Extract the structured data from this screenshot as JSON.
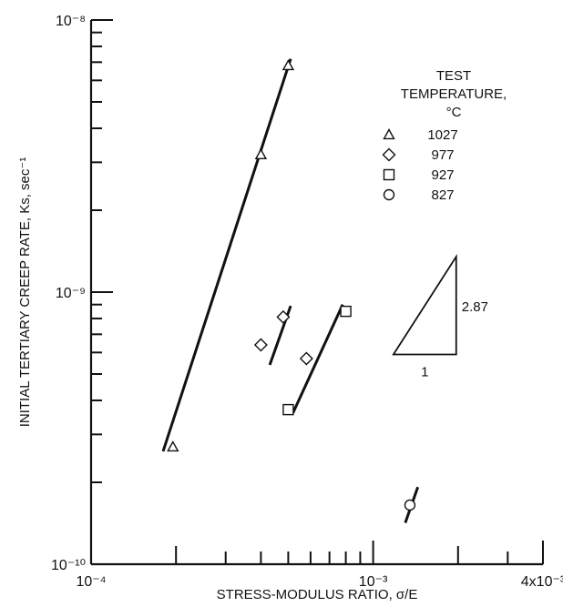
{
  "chart_data": {
    "type": "scatter",
    "title": "",
    "xlabel": "STRESS-MODULUS RATIO, σ/E",
    "ylabel": "INITIAL TERTIARY CREEP RATE, Ks, sec⁻¹",
    "x_scale": "log",
    "y_scale": "log",
    "xlim": [
      0.0001,
      0.004
    ],
    "ylim": [
      1e-10,
      1e-08
    ],
    "x_tick_labels": [
      {
        "value": 0.0001,
        "label": "10⁻⁴"
      },
      {
        "value": 0.001,
        "label": "10⁻³"
      },
      {
        "value": 0.004,
        "label": "4x10⁻³"
      }
    ],
    "y_tick_labels": [
      {
        "value": 1e-10,
        "label": "10⁻¹⁰"
      },
      {
        "value": 1e-09,
        "label": "10⁻⁹"
      },
      {
        "value": 1e-08,
        "label": "10⁻⁸"
      }
    ],
    "grid": false,
    "legend": {
      "title_lines": [
        "TEST",
        "TEMPERATURE,",
        "°C"
      ],
      "placement": "top-right",
      "entries": [
        "1027",
        "977",
        "927",
        "827"
      ]
    },
    "series": [
      {
        "name": "1027",
        "marker": "triangle",
        "points": [
          {
            "x": 0.000195,
            "y": 2.7e-10
          },
          {
            "x": 0.0004,
            "y": 3.2e-09
          },
          {
            "x": 0.0005,
            "y": 6.8e-09
          }
        ],
        "fit": {
          "x": [
            0.00018,
            0.00051
          ],
          "y": [
            2.6e-10,
            7.2e-09
          ]
        }
      },
      {
        "name": "977",
        "marker": "diamond",
        "points": [
          {
            "x": 0.0004,
            "y": 6.4e-10
          },
          {
            "x": 0.00048,
            "y": 8.1e-10
          },
          {
            "x": 0.00058,
            "y": 5.7e-10
          }
        ],
        "fit": {
          "x": [
            0.00043,
            0.00051
          ],
          "y": [
            5.4e-10,
            8.9e-10
          ]
        }
      },
      {
        "name": "927",
        "marker": "square",
        "points": [
          {
            "x": 0.0005,
            "y": 3.7e-10
          },
          {
            "x": 0.0008,
            "y": 8.5e-10
          }
        ],
        "fit": {
          "x": [
            0.00052,
            0.00078
          ],
          "y": [
            3.6e-10,
            9e-10
          ]
        }
      },
      {
        "name": "827",
        "marker": "circle",
        "points": [
          {
            "x": 0.00135,
            "y": 1.65e-10
          }
        ],
        "fit": {
          "x": [
            0.0013,
            0.00144
          ],
          "y": [
            1.42e-10,
            1.92e-10
          ]
        }
      }
    ],
    "annotations": [
      {
        "type": "slope-triangle",
        "slope_label": "2.87",
        "run_label": "1",
        "x": [
          0.00118,
          0.00197
        ],
        "y": [
          5.9e-10,
          1.35e-09
        ]
      }
    ]
  }
}
